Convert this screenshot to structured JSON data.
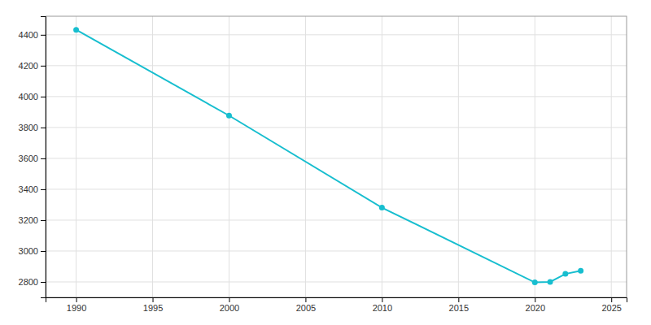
{
  "chart_data": {
    "type": "line",
    "x": [
      1990,
      2000,
      2010,
      2020,
      2021,
      2022,
      2023
    ],
    "values": [
      4432,
      3877,
      3281,
      2797,
      2800,
      2852,
      2872
    ],
    "color": "#17becf",
    "marker": "circle",
    "xlim": [
      1988,
      2026
    ],
    "ylim": [
      2700,
      4520
    ],
    "xticks": [
      1990,
      1995,
      2000,
      2005,
      2010,
      2015,
      2020,
      2025
    ],
    "yticks": [
      2800,
      3000,
      3200,
      3400,
      3600,
      3800,
      4000,
      4200,
      4400
    ],
    "grid": true
  }
}
